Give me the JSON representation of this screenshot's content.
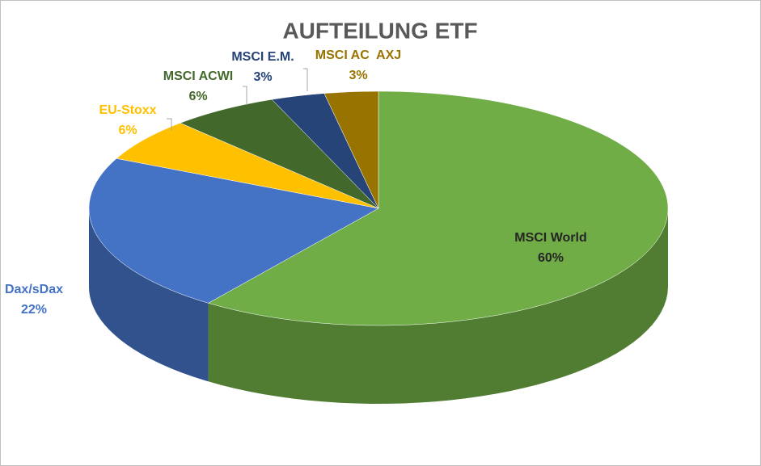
{
  "chart_data": {
    "type": "pie",
    "title": "AUFTEILUNG ETF",
    "categories": [
      "MSCI World",
      "Dax/sDax",
      "EU-Stoxx",
      "MSCI ACWI",
      "MSCI E.M.",
      "MSCI AC  AXJ"
    ],
    "values": [
      60,
      22,
      6,
      6,
      3,
      3
    ],
    "value_labels": [
      "60%",
      "22%",
      "6%",
      "6%",
      "3%",
      "3%"
    ],
    "colors": [
      "#70ad47",
      "#4472c4",
      "#ffc000",
      "#43682b",
      "#264478",
      "#997300"
    ]
  }
}
